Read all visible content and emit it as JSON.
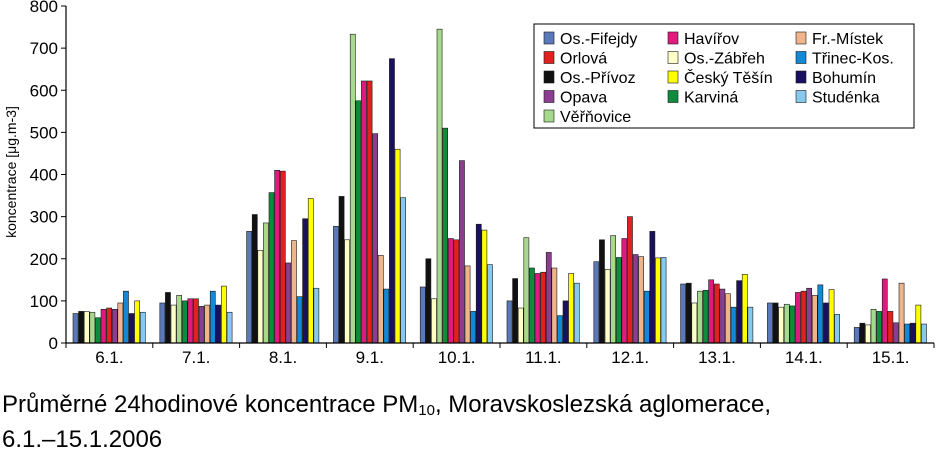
{
  "caption": {
    "line1_pre": "Průměrné 24hodinové koncentrace PM",
    "line1_sub": "10",
    "line1_post": ", Moravskoslezská aglomerace,",
    "line2": "6.1.–15.1.2006"
  },
  "chart_data": {
    "type": "bar",
    "title": "",
    "xlabel": "",
    "ylabel": "koncentrace [μg.m-3]",
    "ylim": [
      0,
      800
    ],
    "yticks": [
      0,
      100,
      200,
      300,
      400,
      500,
      600,
      700,
      800
    ],
    "grid": false,
    "legend_position": "top-right",
    "categories": [
      "6.1.",
      "7.1.",
      "8.1.",
      "9.1.",
      "10.1.",
      "11.1.",
      "12.1.",
      "13.1.",
      "14.1.",
      "15.1."
    ],
    "series": [
      {
        "name": "Os.-Fifejdy",
        "color": "#5b78b8",
        "values": [
          70,
          95,
          265,
          277,
          133,
          100,
          193,
          140,
          95,
          37
        ]
      },
      {
        "name": "Os.-Přívoz",
        "color": "#111111",
        "values": [
          75,
          120,
          305,
          348,
          200,
          153,
          245,
          142,
          95,
          47
        ]
      },
      {
        "name": "Věřňovice",
        "color": "#a8d88b",
        "values": [
          73,
          113,
          285,
          733,
          745,
          250,
          255,
          123,
          92,
          80
        ]
      },
      {
        "name": "Havířov",
        "color": "#e0197e",
        "values": [
          80,
          105,
          410,
          622,
          248,
          165,
          248,
          150,
          120,
          152
        ]
      },
      {
        "name": "Os.-Zábřeh",
        "color": "#ffffc8",
        "values": [
          75,
          90,
          220,
          245,
          105,
          83,
          175,
          95,
          85,
          43
        ]
      },
      {
        "name": "Český Těšín",
        "color": "#ffff00",
        "values": [
          100,
          135,
          343,
          460,
          268,
          165,
          202,
          163,
          127,
          90
        ]
      },
      {
        "name": "Karviná",
        "color": "#0d8c3d",
        "values": [
          60,
          100,
          357,
          575,
          510,
          178,
          203,
          125,
          88,
          75
        ]
      },
      {
        "name": "Bohumín",
        "color": "#1a1060",
        "values": [
          70,
          90,
          295,
          675,
          282,
          100,
          265,
          148,
          95,
          47
        ]
      },
      {
        "name": "Studénka",
        "color": "#86c8ee",
        "values": [
          73,
          73,
          130,
          345,
          186,
          142,
          203,
          85,
          68,
          45
        ]
      },
      {
        "name": "Orlová",
        "color": "#e32020",
        "values": [
          83,
          105,
          408,
          622,
          245,
          168,
          300,
          140,
          123,
          75
        ]
      },
      {
        "name": "Opava",
        "color": "#8b3e8f",
        "values": [
          80,
          87,
          190,
          497,
          433,
          215,
          210,
          128,
          130,
          48
        ]
      },
      {
        "name": "Fr.-Místek",
        "color": "#f0b48a",
        "values": [
          95,
          90,
          243,
          208,
          183,
          178,
          205,
          117,
          113,
          142
        ]
      },
      {
        "name": "Třinec-Kos.",
        "color": "#1188d8",
        "values": [
          123,
          123,
          110,
          128,
          75,
          65,
          123,
          85,
          138,
          45
        ]
      }
    ],
    "legend_columns": [
      [
        "Os.-Fifejdy",
        "Orlová",
        "Os.-Přívoz",
        "Opava",
        "Věřňovice"
      ],
      [
        "Havířov",
        "Os.-Zábřeh",
        "Český Těšín",
        "Karviná"
      ],
      [
        "Fr.-Místek",
        "Třinec-Kos.",
        "Bohumín",
        "Studénka"
      ]
    ],
    "bar_order": [
      "Os.-Fifejdy",
      "Os.-Přívoz",
      "Os.-Zábřeh",
      "Věřňovice",
      "Karviná",
      "Havířov",
      "Orlová",
      "Opava",
      "Fr.-Místek",
      "Třinec-Kos.",
      "Bohumín",
      "Český Těšín",
      "Studénka"
    ]
  }
}
